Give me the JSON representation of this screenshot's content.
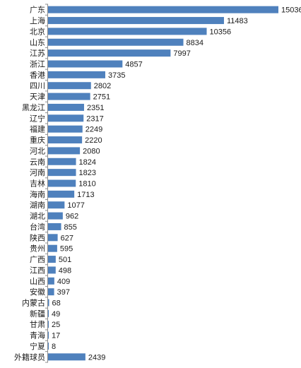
{
  "chart_data": {
    "type": "bar",
    "orientation": "horizontal",
    "categories": [
      "广东",
      "上海",
      "北京",
      "山东",
      "江苏",
      "浙江",
      "香港",
      "四川",
      "天津",
      "黑龙江",
      "辽宁",
      "福建",
      "重庆",
      "河北",
      "云南",
      "河南",
      "吉林",
      "海南",
      "湖南",
      "湖北",
      "台湾",
      "陕西",
      "贵州",
      "广西",
      "江西",
      "山西",
      "安徽",
      "内蒙古",
      "新疆",
      "甘肃",
      "青海",
      "宁夏",
      "外籍球员"
    ],
    "values": [
      15036,
      11483,
      10356,
      8834,
      7997,
      4857,
      3735,
      2802,
      2751,
      2351,
      2317,
      2249,
      2220,
      2080,
      1824,
      1823,
      1810,
      1713,
      1077,
      962,
      855,
      627,
      595,
      501,
      498,
      409,
      397,
      68,
      49,
      25,
      17,
      8,
      2439
    ],
    "xlim": [
      0,
      15036
    ],
    "data_labels": true,
    "grid": false,
    "legend": "none",
    "bar_color": "#4f81bd"
  }
}
